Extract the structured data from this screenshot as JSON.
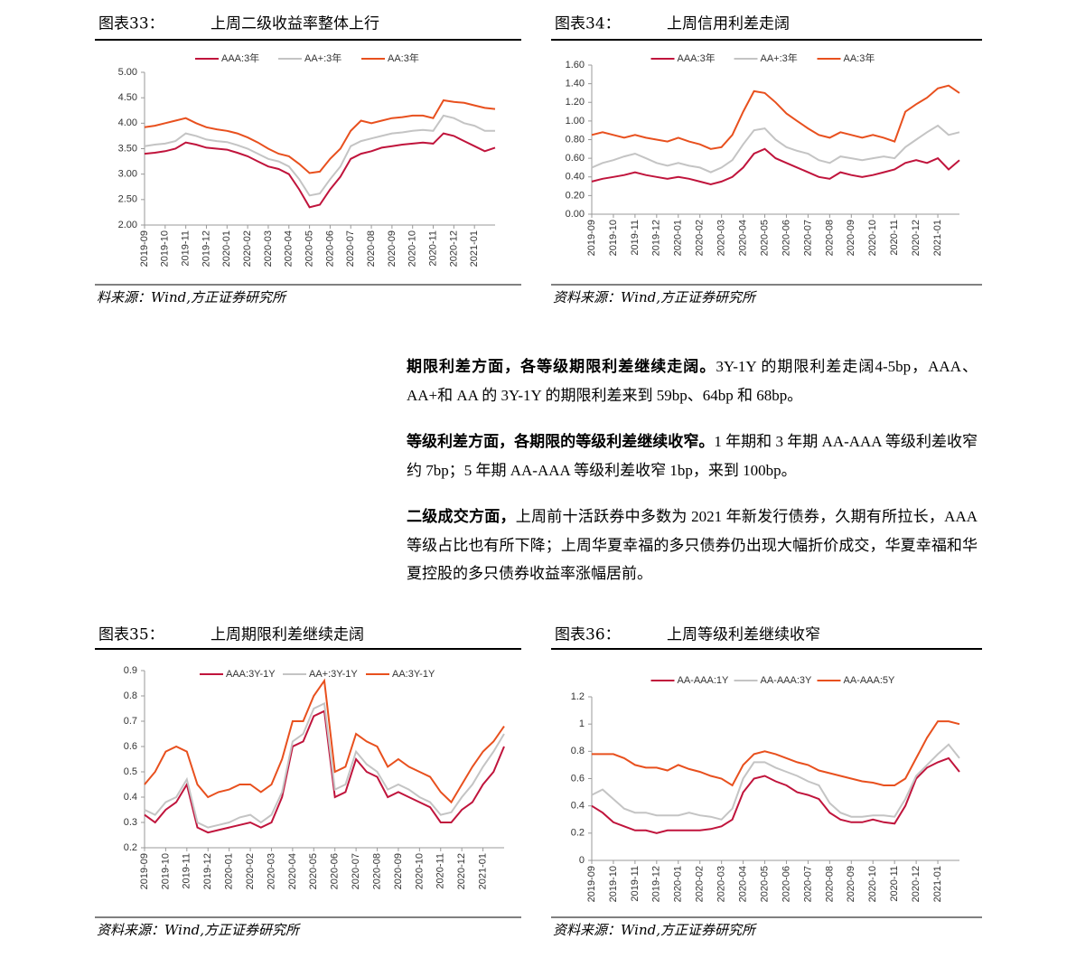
{
  "chart_data": [
    {
      "type": "line",
      "label": "图表33：",
      "title": "上周二级收益率整体上行",
      "source": "料来源：Wind,方正证券研究所",
      "categories": [
        "2019-09",
        null,
        "2019-10",
        null,
        "2019-11",
        null,
        "2019-12",
        null,
        "2020-01",
        null,
        "2020-02",
        null,
        "2020-03",
        null,
        "2020-04",
        null,
        "2020-05",
        null,
        "2020-06",
        null,
        "2020-07",
        null,
        "2020-08",
        null,
        "2020-09",
        null,
        "2020-10",
        null,
        "2020-11",
        null,
        "2020-12",
        null,
        "2021-01",
        null,
        null
      ],
      "ylim": [
        2,
        5
      ],
      "yticks": [
        {
          "value": 2,
          "label": "2.00"
        },
        {
          "value": 2.5,
          "label": "2.50"
        },
        {
          "value": 3,
          "label": "3.00"
        },
        {
          "value": 3.5,
          "label": "3.50"
        },
        {
          "value": 4,
          "label": "4.00"
        },
        {
          "value": 4.5,
          "label": "4.50"
        },
        {
          "value": 5,
          "label": "5.00"
        }
      ],
      "series": [
        {
          "name": "AAA:3年",
          "color": "#c0143c",
          "values": [
            3.4,
            3.42,
            3.45,
            3.5,
            3.62,
            3.58,
            3.52,
            3.5,
            3.48,
            3.42,
            3.35,
            3.25,
            3.15,
            3.1,
            3.0,
            2.7,
            2.35,
            2.4,
            2.7,
            2.95,
            3.3,
            3.4,
            3.45,
            3.52,
            3.55,
            3.58,
            3.6,
            3.62,
            3.6,
            3.8,
            3.75,
            3.65,
            3.55,
            3.45,
            3.52
          ]
        },
        {
          "name": "AA+:3年",
          "color": "#c4c4c4",
          "values": [
            3.55,
            3.58,
            3.6,
            3.65,
            3.8,
            3.75,
            3.68,
            3.65,
            3.63,
            3.57,
            3.5,
            3.4,
            3.3,
            3.25,
            3.15,
            2.9,
            2.58,
            2.62,
            2.9,
            3.15,
            3.55,
            3.65,
            3.7,
            3.75,
            3.8,
            3.82,
            3.85,
            3.87,
            3.85,
            4.15,
            4.1,
            4.0,
            3.95,
            3.85,
            3.85
          ]
        },
        {
          "name": "AA:3年",
          "color": "#e8501e",
          "values": [
            3.92,
            3.95,
            4.0,
            4.05,
            4.1,
            4.0,
            3.92,
            3.88,
            3.85,
            3.8,
            3.72,
            3.62,
            3.5,
            3.4,
            3.35,
            3.2,
            3.02,
            3.05,
            3.3,
            3.5,
            3.85,
            4.05,
            4.0,
            4.05,
            4.1,
            4.12,
            4.15,
            4.15,
            4.1,
            4.45,
            4.42,
            4.4,
            4.35,
            4.3,
            4.28
          ]
        }
      ]
    },
    {
      "type": "line",
      "label": "图表34：",
      "title": "上周信用利差走阔",
      "source": "资料来源：Wind,方正证券研究所",
      "categories": [
        "2019-09",
        null,
        "2019-10",
        null,
        "2019-11",
        null,
        "2019-12",
        null,
        "2020-01",
        null,
        "2020-02",
        null,
        "2020-03",
        null,
        "2020-04",
        null,
        "2020-05",
        null,
        "2020-06",
        null,
        "2020-07",
        null,
        "2020-08",
        null,
        "2020-09",
        null,
        "2020-10",
        null,
        "2020-11",
        null,
        "2020-12",
        null,
        "2021-01",
        null,
        null
      ],
      "ylim": [
        0,
        1.6
      ],
      "yticks": [
        {
          "value": 0,
          "label": "0.00"
        },
        {
          "value": 0.2,
          "label": "0.20"
        },
        {
          "value": 0.4,
          "label": "0.40"
        },
        {
          "value": 0.6,
          "label": "0.60"
        },
        {
          "value": 0.8,
          "label": "0.80"
        },
        {
          "value": 1,
          "label": "1.00"
        },
        {
          "value": 1.2,
          "label": "1.20"
        },
        {
          "value": 1.4,
          "label": "1.40"
        },
        {
          "value": 1.6,
          "label": "1.60"
        }
      ],
      "series": [
        {
          "name": "AAA:3年",
          "color": "#c0143c",
          "values": [
            0.35,
            0.38,
            0.4,
            0.42,
            0.45,
            0.42,
            0.4,
            0.38,
            0.4,
            0.38,
            0.35,
            0.32,
            0.35,
            0.4,
            0.5,
            0.65,
            0.7,
            0.6,
            0.55,
            0.5,
            0.45,
            0.4,
            0.38,
            0.45,
            0.42,
            0.4,
            0.42,
            0.45,
            0.48,
            0.55,
            0.58,
            0.55,
            0.6,
            0.48,
            0.58
          ]
        },
        {
          "name": "AA+:3年",
          "color": "#c4c4c4",
          "values": [
            0.5,
            0.55,
            0.58,
            0.62,
            0.65,
            0.6,
            0.55,
            0.52,
            0.55,
            0.52,
            0.5,
            0.45,
            0.5,
            0.58,
            0.75,
            0.9,
            0.92,
            0.8,
            0.72,
            0.68,
            0.65,
            0.58,
            0.55,
            0.62,
            0.6,
            0.58,
            0.6,
            0.62,
            0.6,
            0.72,
            0.8,
            0.88,
            0.95,
            0.85,
            0.88
          ]
        },
        {
          "name": "AA:3年",
          "color": "#e8501e",
          "values": [
            0.85,
            0.88,
            0.85,
            0.82,
            0.85,
            0.82,
            0.8,
            0.78,
            0.82,
            0.78,
            0.75,
            0.7,
            0.72,
            0.85,
            1.1,
            1.32,
            1.3,
            1.2,
            1.08,
            1.0,
            0.92,
            0.85,
            0.82,
            0.88,
            0.85,
            0.82,
            0.85,
            0.82,
            0.78,
            1.1,
            1.18,
            1.25,
            1.35,
            1.38,
            1.3
          ]
        }
      ]
    },
    {
      "type": "line",
      "label": "图表35：",
      "title": "上周期限利差继续走阔",
      "source": "资料来源：Wind,方正证券研究所",
      "categories": [
        "2019-09",
        null,
        "2019-10",
        null,
        "2019-11",
        null,
        "2019-12",
        null,
        "2020-01",
        null,
        "2020-02",
        null,
        "2020-03",
        null,
        "2020-04",
        null,
        "2020-05",
        null,
        "2020-06",
        null,
        "2020-07",
        null,
        "2020-08",
        null,
        "2020-09",
        null,
        "2020-10",
        null,
        "2020-11",
        null,
        "2020-12",
        null,
        "2021-01",
        null,
        null
      ],
      "ylim": [
        0.2,
        0.9
      ],
      "yticks": [
        0.2,
        0.3,
        0.4,
        0.5,
        0.6,
        0.7,
        0.8,
        0.9
      ],
      "series": [
        {
          "name": "AAA:3Y-1Y",
          "color": "#c0143c",
          "values": [
            0.33,
            0.3,
            0.35,
            0.38,
            0.45,
            0.28,
            0.26,
            0.27,
            0.28,
            0.29,
            0.3,
            0.28,
            0.3,
            0.4,
            0.6,
            0.62,
            0.72,
            0.74,
            0.4,
            0.42,
            0.55,
            0.5,
            0.48,
            0.4,
            0.42,
            0.4,
            0.38,
            0.36,
            0.3,
            0.3,
            0.35,
            0.38,
            0.45,
            0.5,
            0.6
          ]
        },
        {
          "name": "AA+:3Y-1Y",
          "color": "#c4c4c4",
          "values": [
            0.35,
            0.33,
            0.38,
            0.4,
            0.47,
            0.3,
            0.28,
            0.29,
            0.3,
            0.32,
            0.33,
            0.3,
            0.33,
            0.42,
            0.62,
            0.65,
            0.75,
            0.77,
            0.43,
            0.45,
            0.58,
            0.53,
            0.5,
            0.43,
            0.45,
            0.43,
            0.4,
            0.38,
            0.33,
            0.34,
            0.4,
            0.45,
            0.52,
            0.58,
            0.65
          ]
        },
        {
          "name": "AA:3Y-1Y",
          "color": "#e8501e",
          "values": [
            0.45,
            0.5,
            0.58,
            0.6,
            0.58,
            0.45,
            0.4,
            0.42,
            0.43,
            0.45,
            0.45,
            0.42,
            0.45,
            0.55,
            0.7,
            0.7,
            0.8,
            0.86,
            0.5,
            0.52,
            0.65,
            0.62,
            0.6,
            0.52,
            0.55,
            0.52,
            0.5,
            0.48,
            0.42,
            0.38,
            0.45,
            0.52,
            0.58,
            0.62,
            0.68
          ]
        }
      ]
    },
    {
      "type": "line",
      "label": "图表36：",
      "title": "上周等级利差继续收窄",
      "source": "资料来源：Wind,方正证券研究所",
      "categories": [
        "2019-09",
        null,
        "2019-10",
        null,
        "2019-11",
        null,
        "2019-12",
        null,
        "2020-01",
        null,
        "2020-02",
        null,
        "2020-03",
        null,
        "2020-04",
        null,
        "2020-05",
        null,
        "2020-06",
        null,
        "2020-07",
        null,
        "2020-08",
        null,
        "2020-09",
        null,
        "2020-10",
        null,
        "2020-11",
        null,
        "2020-12",
        null,
        "2021-01",
        null,
        null
      ],
      "ylim": [
        0,
        1.2
      ],
      "yticks": [
        0,
        0.2,
        0.4,
        0.6,
        0.8,
        1,
        1.2
      ],
      "series": [
        {
          "name": "AA-AAA:1Y",
          "color": "#c0143c",
          "values": [
            0.4,
            0.35,
            0.28,
            0.25,
            0.22,
            0.22,
            0.2,
            0.22,
            0.22,
            0.22,
            0.22,
            0.23,
            0.25,
            0.3,
            0.5,
            0.6,
            0.62,
            0.58,
            0.55,
            0.5,
            0.48,
            0.45,
            0.35,
            0.3,
            0.28,
            0.28,
            0.3,
            0.28,
            0.27,
            0.4,
            0.6,
            0.68,
            0.72,
            0.75,
            0.65
          ]
        },
        {
          "name": "AA-AAA:3Y",
          "color": "#c4c4c4",
          "values": [
            0.48,
            0.52,
            0.45,
            0.38,
            0.35,
            0.35,
            0.33,
            0.33,
            0.33,
            0.35,
            0.33,
            0.32,
            0.3,
            0.38,
            0.6,
            0.72,
            0.72,
            0.68,
            0.65,
            0.62,
            0.58,
            0.55,
            0.42,
            0.35,
            0.32,
            0.32,
            0.33,
            0.33,
            0.32,
            0.45,
            0.62,
            0.7,
            0.78,
            0.85,
            0.75
          ]
        },
        {
          "name": "AA-AAA:5Y",
          "color": "#e8501e",
          "values": [
            0.78,
            0.78,
            0.78,
            0.75,
            0.7,
            0.68,
            0.68,
            0.66,
            0.7,
            0.67,
            0.65,
            0.62,
            0.6,
            0.55,
            0.7,
            0.78,
            0.8,
            0.78,
            0.75,
            0.72,
            0.7,
            0.66,
            0.64,
            0.62,
            0.6,
            0.58,
            0.57,
            0.55,
            0.55,
            0.6,
            0.75,
            0.9,
            1.02,
            1.02,
            1.0
          ]
        }
      ]
    }
  ],
  "paragraphs": [
    {
      "lead": "期限利差方面，各等级期限利差继续走阔。",
      "text": "3Y-1Y 的期限利差走阔4-5bp，AAA、AA+和 AA 的 3Y-1Y 的期限利差来到 59bp、64bp 和 68bp。"
    },
    {
      "lead": "等级利差方面，各期限的等级利差继续收窄。",
      "text": "1 年期和 3 年期 AA-AAA 等级利差收窄约 7bp；5 年期 AA-AAA 等级利差收窄 1bp，来到 100bp。"
    },
    {
      "lead": "二级成交方面，",
      "text": "上周前十活跃券中多数为 2021 年新发行债券，久期有所拉长，AAA 等级占比也有所下降；上周华夏幸福的多只债券仍出现大幅折价成交，华夏幸福和华夏控股的多只债券收益率涨幅居前。"
    }
  ]
}
